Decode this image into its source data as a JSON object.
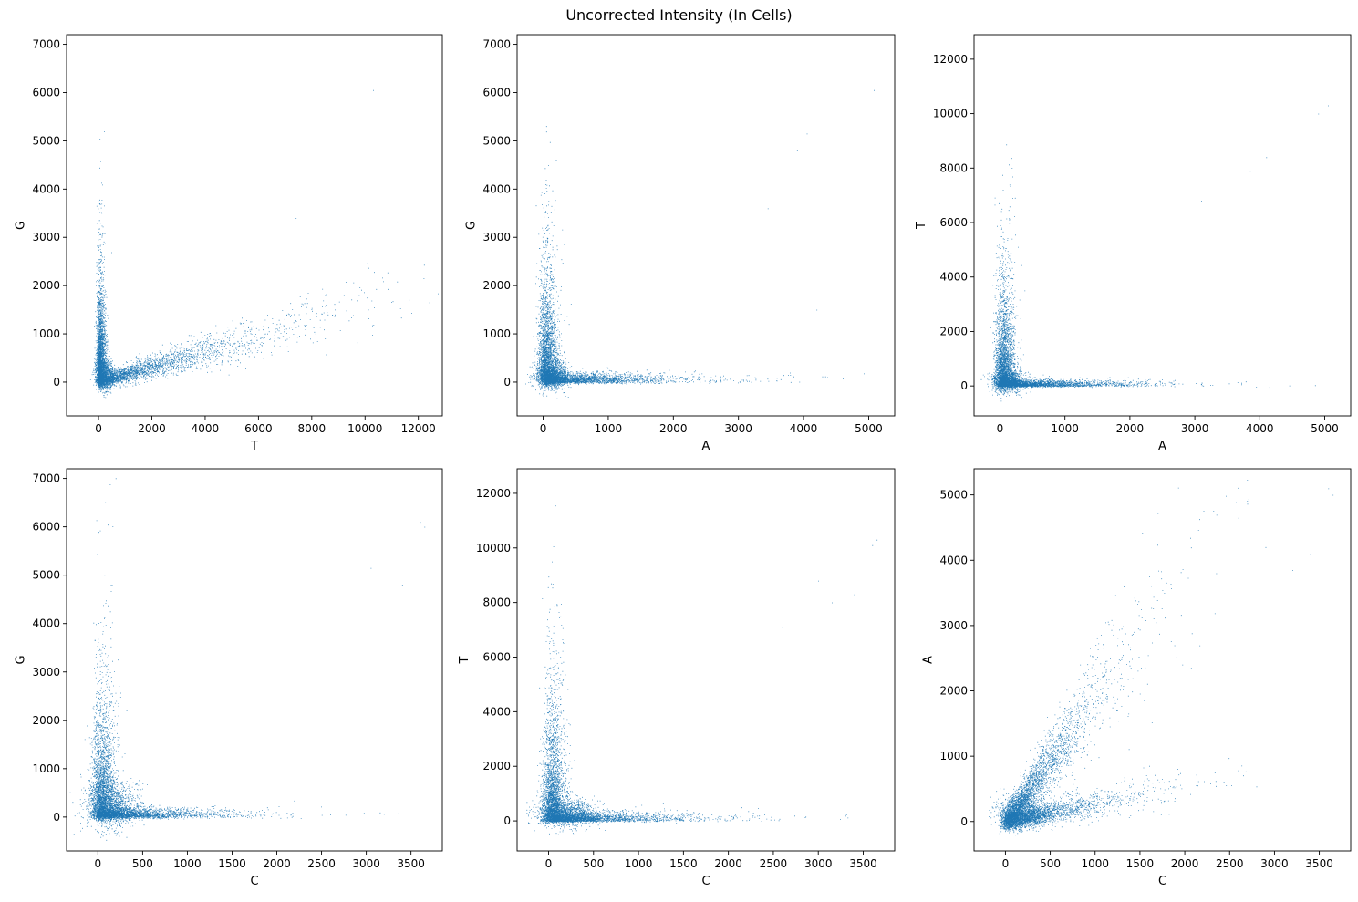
{
  "figure": {
    "title": "Uncorrected Intensity (In Cells)",
    "point_color": "#1f77b4"
  },
  "chart_data": [
    {
      "type": "scatter",
      "xlabel": "T",
      "ylabel": "G",
      "xlim": [
        -1200,
        12900
      ],
      "ylim": [
        -700,
        7200
      ],
      "xticks": [
        0,
        2000,
        4000,
        6000,
        8000,
        10000,
        12000
      ],
      "yticks": [
        0,
        1000,
        2000,
        3000,
        4000,
        5000,
        6000,
        7000
      ],
      "clusters": [
        {
          "shape": "vertical",
          "x_spread": 120,
          "y_max": 4800,
          "y_decay": 700,
          "n": 2600
        },
        {
          "shape": "diagonal",
          "x_max": 9500,
          "slope": 0.16,
          "x_decay": 2400,
          "n": 2600
        },
        {
          "shape": "blob",
          "x": 250,
          "y": 150,
          "sx": 180,
          "sy": 150,
          "n": 900
        }
      ],
      "outliers": [
        [
          10000,
          6100
        ],
        [
          10300,
          6050
        ],
        [
          12200,
          2150
        ],
        [
          9200,
          1800
        ],
        [
          8600,
          1400
        ],
        [
          7400,
          3400
        ]
      ]
    },
    {
      "type": "scatter",
      "xlabel": "A",
      "ylabel": "G",
      "xlim": [
        -400,
        5400
      ],
      "ylim": [
        -700,
        7200
      ],
      "xticks": [
        0,
        1000,
        2000,
        3000,
        4000,
        5000
      ],
      "yticks": [
        0,
        1000,
        2000,
        3000,
        4000,
        5000,
        6000,
        7000
      ],
      "clusters": [
        {
          "shape": "vertical",
          "x_spread": 100,
          "y_max": 5000,
          "y_decay": 750,
          "n": 2600
        },
        {
          "shape": "horizontal",
          "x_max": 3500,
          "x_decay": 650,
          "y_spread": 90,
          "n": 2600
        },
        {
          "shape": "blob",
          "x": 120,
          "y": 150,
          "sx": 130,
          "sy": 160,
          "n": 900
        }
      ],
      "outliers": [
        [
          4850,
          6100
        ],
        [
          5080,
          6050
        ],
        [
          4050,
          5150
        ],
        [
          3900,
          4800
        ],
        [
          4200,
          1500
        ],
        [
          3450,
          3600
        ]
      ]
    },
    {
      "type": "scatter",
      "xlabel": "A",
      "ylabel": "T",
      "xlim": [
        -400,
        5400
      ],
      "ylim": [
        -1100,
        12900
      ],
      "xticks": [
        0,
        1000,
        2000,
        3000,
        4000,
        5000
      ],
      "yticks": [
        0,
        2000,
        4000,
        6000,
        8000,
        10000,
        12000
      ],
      "clusters": [
        {
          "shape": "vertical",
          "x_spread": 100,
          "y_max": 9500,
          "y_decay": 1300,
          "n": 2600
        },
        {
          "shape": "horizontal",
          "x_max": 3500,
          "x_decay": 650,
          "y_spread": 110,
          "n": 2600
        },
        {
          "shape": "blob",
          "x": 120,
          "y": 200,
          "sx": 130,
          "sy": 220,
          "n": 900
        }
      ],
      "outliers": [
        [
          4900,
          10000
        ],
        [
          5050,
          10300
        ],
        [
          4150,
          8700
        ],
        [
          3850,
          7900
        ],
        [
          4100,
          8400
        ],
        [
          3100,
          6800
        ]
      ]
    },
    {
      "type": "scatter",
      "xlabel": "C",
      "ylabel": "G",
      "xlim": [
        -350,
        3850
      ],
      "ylim": [
        -700,
        7200
      ],
      "xticks": [
        0,
        500,
        1000,
        1500,
        2000,
        2500,
        3000,
        3500
      ],
      "yticks": [
        0,
        1000,
        2000,
        3000,
        4000,
        5000,
        6000,
        7000
      ],
      "clusters": [
        {
          "shape": "vertical",
          "x_spread": 90,
          "y_max": 5000,
          "y_decay": 800,
          "n": 2600
        },
        {
          "shape": "horizontal",
          "x_max": 2400,
          "x_decay": 450,
          "y_spread": 90,
          "n": 2600
        },
        {
          "shape": "blob",
          "x": 150,
          "y": 250,
          "sx": 150,
          "sy": 250,
          "n": 1100
        }
      ],
      "outliers": [
        [
          3600,
          6100
        ],
        [
          3650,
          6000
        ],
        [
          3050,
          5150
        ],
        [
          3250,
          4650
        ],
        [
          3400,
          4800
        ],
        [
          2700,
          3500
        ]
      ]
    },
    {
      "type": "scatter",
      "xlabel": "C",
      "ylabel": "T",
      "xlim": [
        -350,
        3850
      ],
      "ylim": [
        -1100,
        12900
      ],
      "xticks": [
        0,
        500,
        1000,
        1500,
        2000,
        2500,
        3000,
        3500
      ],
      "yticks": [
        0,
        2000,
        4000,
        6000,
        8000,
        10000,
        12000
      ],
      "clusters": [
        {
          "shape": "vertical",
          "x_spread": 80,
          "y_max": 9500,
          "y_decay": 1500,
          "n": 2600
        },
        {
          "shape": "horizontal",
          "x_max": 2400,
          "x_decay": 500,
          "y_spread": 160,
          "n": 2600
        },
        {
          "shape": "blob",
          "x": 200,
          "y": 300,
          "sx": 160,
          "sy": 280,
          "n": 1100
        }
      ],
      "outliers": [
        [
          3600,
          10100
        ],
        [
          3650,
          10300
        ],
        [
          3000,
          8800
        ],
        [
          3150,
          8000
        ],
        [
          3400,
          8300
        ],
        [
          2600,
          7100
        ]
      ]
    },
    {
      "type": "scatter",
      "xlabel": "C",
      "ylabel": "A",
      "xlim": [
        -350,
        3850
      ],
      "ylim": [
        -450,
        5400
      ],
      "xticks": [
        0,
        500,
        1000,
        1500,
        2000,
        2500,
        3000,
        3500
      ],
      "yticks": [
        0,
        1000,
        2000,
        3000,
        4000,
        5000
      ],
      "clusters": [
        {
          "shape": "diagonal",
          "x_max": 1900,
          "slope": 1.85,
          "x_decay": 380,
          "n": 3000
        },
        {
          "shape": "diagonal",
          "x_max": 2200,
          "slope": 0.28,
          "x_decay": 420,
          "n": 2600
        },
        {
          "shape": "blob",
          "x": 150,
          "y": 150,
          "sx": 130,
          "sy": 130,
          "n": 900
        }
      ],
      "outliers": [
        [
          3600,
          5100
        ],
        [
          3650,
          5000
        ],
        [
          2900,
          4200
        ],
        [
          3400,
          4100
        ],
        [
          3200,
          3850
        ],
        [
          2350,
          3800
        ]
      ]
    }
  ]
}
